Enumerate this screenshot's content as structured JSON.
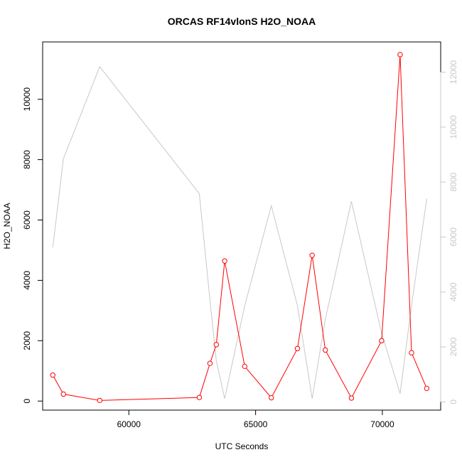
{
  "chart_data": {
    "type": "line",
    "title": "ORCAS RF14vlonS H2O_NOAA",
    "xlabel": "UTC Seconds",
    "ylabel": "H2O_NOAA",
    "xlim": [
      56600,
      72300
    ],
    "ylim": [
      -300,
      11900
    ],
    "y2lim": [
      -300,
      13100
    ],
    "x_ticks": [
      60000,
      65000,
      70000
    ],
    "x_tick_labels": [
      "60000",
      "65000",
      "70000"
    ],
    "y_ticks": [
      0,
      2000,
      4000,
      6000,
      8000,
      10000
    ],
    "y_tick_labels": [
      "0",
      "2000",
      "4000",
      "6000",
      "8000",
      "10000"
    ],
    "y2_ticks": [
      0,
      2000,
      4000,
      6000,
      8000,
      10000,
      12000
    ],
    "y2_tick_labels": [
      "0",
      "2000",
      "4000",
      "6000",
      "8000",
      "10000",
      "12000"
    ],
    "grid": false,
    "legend": "none",
    "series": [
      {
        "axis": "left",
        "color": "#ff0000",
        "markers": "open-circle",
        "x": [
          57000,
          57420,
          58850,
          62780,
          63200,
          63450,
          63780,
          64570,
          65620,
          66650,
          67230,
          67750,
          68780,
          69970,
          70700,
          71150,
          71750
        ],
        "y": [
          860,
          230,
          20,
          120,
          1250,
          1870,
          4640,
          1150,
          110,
          1740,
          4830,
          1690,
          100,
          2000,
          11480,
          1600,
          420
        ]
      },
      {
        "axis": "right",
        "color": "#c8c8c8",
        "markers": "none",
        "x": [
          57000,
          57420,
          58850,
          62780,
          63200,
          63450,
          63780,
          64570,
          65620,
          66650,
          67230,
          67750,
          68780,
          69970,
          70700,
          71150,
          71750
        ],
        "y": [
          5620,
          8850,
          12200,
          7580,
          3700,
          1500,
          120,
          3500,
          7140,
          3500,
          120,
          3000,
          7300,
          2500,
          300,
          3500,
          7400
        ]
      }
    ]
  }
}
